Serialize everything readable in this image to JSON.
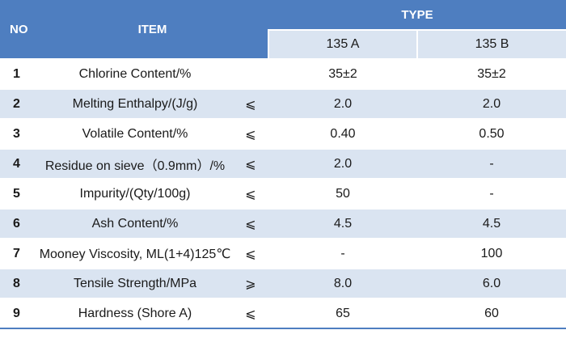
{
  "header": {
    "no": "NO",
    "item": "ITEM",
    "type": "TYPE",
    "types": [
      "135 A",
      "135 B"
    ]
  },
  "rows": [
    {
      "no": "1",
      "item": "Chlorine Content/%",
      "sym": "",
      "a": "35±2",
      "b": "35±2"
    },
    {
      "no": "2",
      "item": "Melting Enthalpy/(J/g)",
      "sym": "⩽",
      "a": "2.0",
      "b": "2.0"
    },
    {
      "no": "3",
      "item": "Volatile Content/%",
      "sym": "⩽",
      "a": "0.40",
      "b": "0.50"
    },
    {
      "no": "4",
      "item": "Residue on sieve（0.9mm）/%",
      "sym": "⩽",
      "a": "2.0",
      "b": "-"
    },
    {
      "no": "5",
      "item": "Impurity/(Qty/100g)",
      "sym": "⩽",
      "a": "50",
      "b": "-"
    },
    {
      "no": "6",
      "item": "Ash Content/%",
      "sym": "⩽",
      "a": "4.5",
      "b": "4.5"
    },
    {
      "no": "7",
      "item": "Mooney Viscosity, ML(1+4)125℃",
      "sym": "⩽",
      "a": "-",
      "b": "100"
    },
    {
      "no": "8",
      "item": "Tensile Strength/MPa",
      "sym": "⩾",
      "a": "8.0",
      "b": "6.0"
    },
    {
      "no": "9",
      "item": "Hardness (Shore A)",
      "sym": "⩽",
      "a": "65",
      "b": "60"
    }
  ],
  "colors": {
    "header_blue": "#4e7ec0",
    "band_light": "#dae4f1"
  }
}
